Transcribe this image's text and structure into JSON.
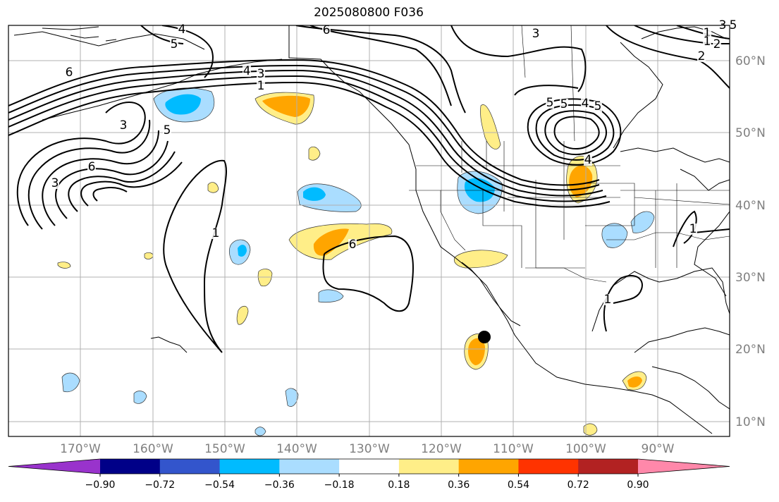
{
  "title": "2025080800 F036",
  "map": {
    "lon_ticks": [
      "170°W",
      "160°W",
      "150°W",
      "140°W",
      "130°W",
      "120°W",
      "110°W",
      "100°W",
      "90°W"
    ],
    "lat_ticks": [
      "60°N",
      "50°N",
      "40°N",
      "30°N",
      "20°N",
      "10°N"
    ],
    "contour_labels": [
      "4",
      "5",
      "6",
      "3",
      "4",
      "3",
      "1",
      "1",
      "2",
      "6",
      "5",
      "3",
      "6",
      "5",
      "5",
      "4",
      "5",
      "4",
      "3",
      "6",
      "1",
      "1",
      "1",
      "1",
      "2",
      "5",
      "3"
    ],
    "storm_marker": "black-dot"
  },
  "colorbar": {
    "tick_labels": [
      "−0.90",
      "−0.72",
      "−0.54",
      "−0.36",
      "−0.18",
      "0.18",
      "0.36",
      "0.54",
      "0.72",
      "0.90"
    ],
    "colors": [
      "#9933cc",
      "#000088",
      "#3355cc",
      "#00bbff",
      "#aaddff",
      "#ffffff",
      "#ffee88",
      "#ffa500",
      "#ff3300",
      "#b22222",
      "#ff88aa"
    ]
  }
}
